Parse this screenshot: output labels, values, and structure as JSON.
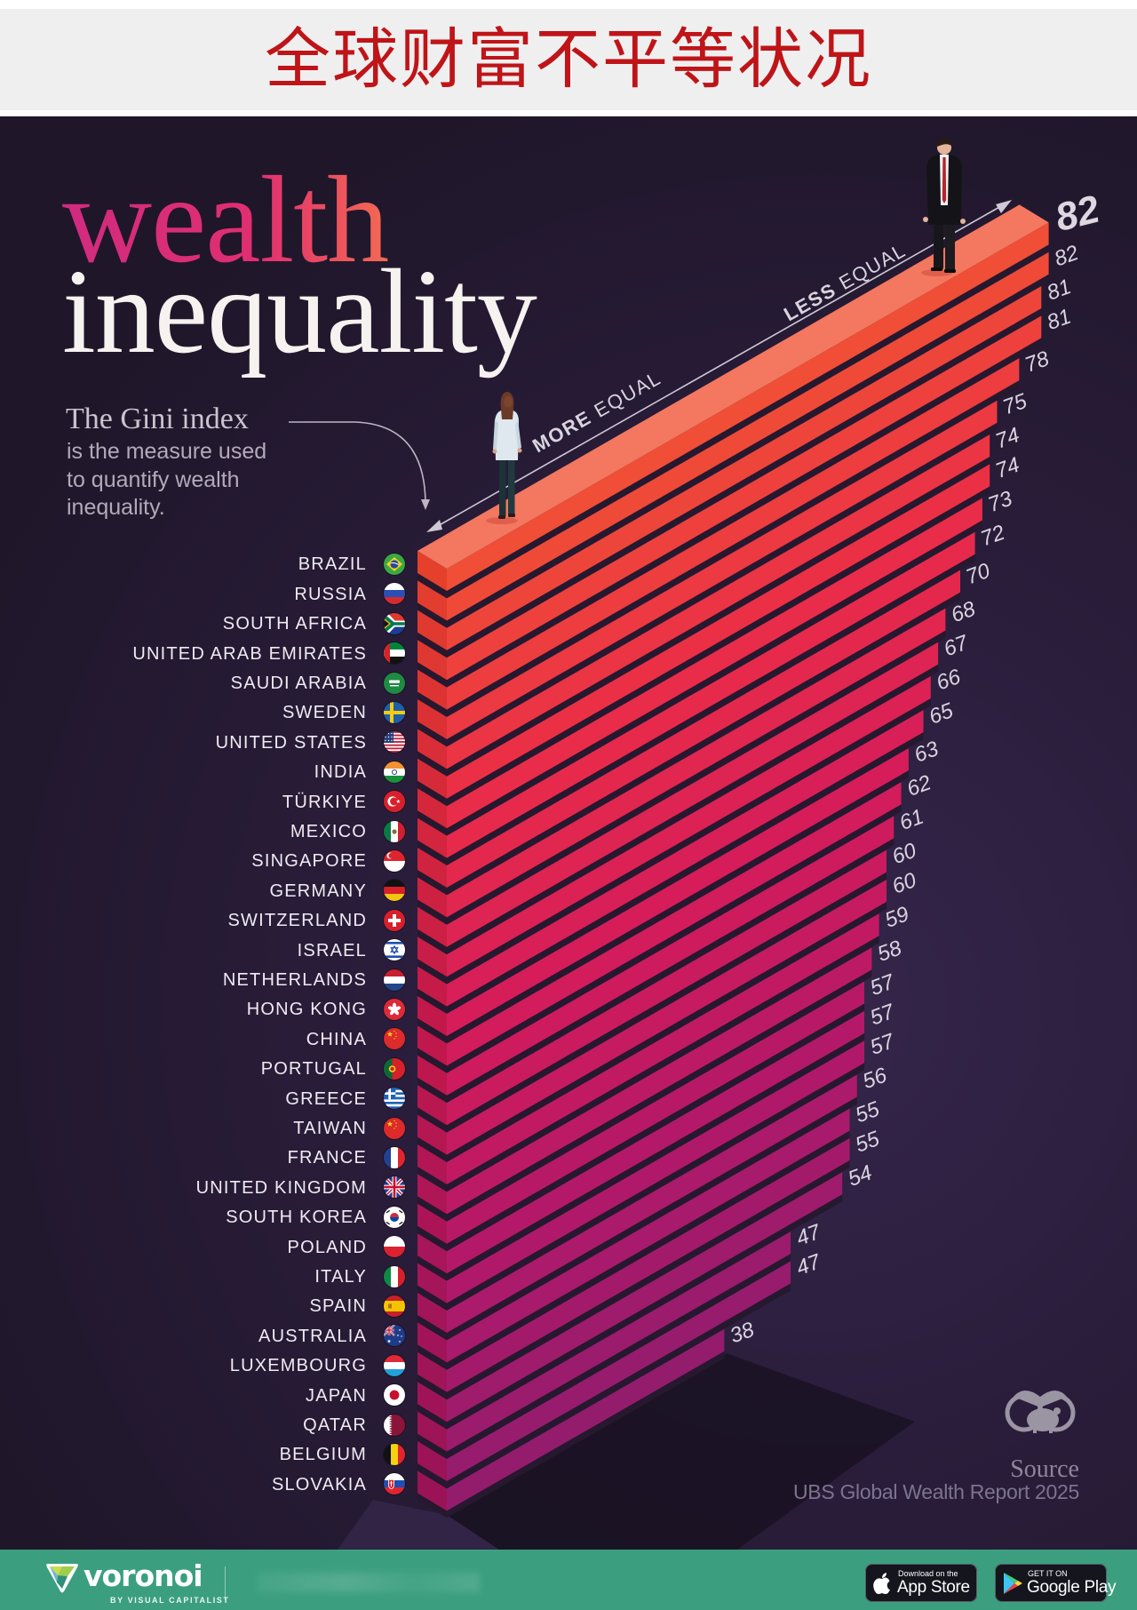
{
  "header": {
    "title_cn": "全球财富不平等状况"
  },
  "headline": {
    "line1": "wealth",
    "line2": "inequality"
  },
  "intro": {
    "heading": "The Gini index",
    "body": [
      "is the measure used",
      "to quantify wealth",
      "inequality."
    ]
  },
  "axis": {
    "more_equal": {
      "strong": "MORE",
      "rest": "EQUAL"
    },
    "less_equal": {
      "strong": "LESS",
      "rest": "EQUAL"
    }
  },
  "source": {
    "label": "Source",
    "text": "UBS Global Wealth Report 2025",
    "icon": "binoculars-piggy-icon"
  },
  "footer": {
    "brand": "voronoi",
    "brand_sub": "BY VISUAL CAPITALIST",
    "app_store": {
      "small": "Download on the",
      "big": "App Store"
    },
    "google_play": {
      "small": "GET IT ON",
      "big": "Google Play"
    }
  },
  "colors": {
    "title_cn": "#bf1418",
    "background": "#241a2e",
    "footer": "#3b9f7f",
    "bar_top_face": "#f4775f",
    "bar_face_stops": [
      "#f04e36",
      "#ea2d48",
      "#d51c5a",
      "#b3196a",
      "#931c6d"
    ],
    "bar_cap_stops": [
      "#e4402c",
      "#d6283a",
      "#c2184b",
      "#a6155a",
      "#9a1356"
    ]
  },
  "chart_data": {
    "type": "bar",
    "orientation": "horizontal",
    "title": "wealth inequality",
    "subtitle": "The Gini index is the measure used to quantify wealth inequality.",
    "xlabel": "",
    "ylabel": "",
    "axis_direction": [
      "MORE EQUAL",
      "LESS EQUAL"
    ],
    "categories": [
      "BRAZIL",
      "RUSSIA",
      "SOUTH AFRICA",
      "UNITED ARAB EMIRATES",
      "SAUDI ARABIA",
      "SWEDEN",
      "UNITED STATES",
      "INDIA",
      "TÜRKIYE",
      "MEXICO",
      "SINGAPORE",
      "GERMANY",
      "SWITZERLAND",
      "ISRAEL",
      "NETHERLANDS",
      "HONG KONG",
      "CHINA",
      "PORTUGAL",
      "GREECE",
      "TAIWAN",
      "FRANCE",
      "UNITED KINGDOM",
      "SOUTH KOREA",
      "POLAND",
      "ITALY",
      "SPAIN",
      "AUSTRALIA",
      "LUXEMBOURG",
      "JAPAN",
      "QATAR",
      "BELGIUM",
      "SLOVAKIA"
    ],
    "values": [
      82,
      82,
      81,
      81,
      78,
      75,
      74,
      74,
      73,
      72,
      70,
      68,
      67,
      66,
      65,
      63,
      62,
      61,
      60,
      60,
      59,
      58,
      57,
      57,
      57,
      56,
      55,
      55,
      54,
      47,
      47,
      38
    ],
    "flag_icons": [
      "brazil-flag-icon",
      "russia-flag-icon",
      "south-africa-flag-icon",
      "united-arab-emirates-flag-icon",
      "saudi-arabia-flag-icon",
      "sweden-flag-icon",
      "united-states-flag-icon",
      "india-flag-icon",
      "turkiye-flag-icon",
      "mexico-flag-icon",
      "singapore-flag-icon",
      "germany-flag-icon",
      "switzerland-flag-icon",
      "israel-flag-icon",
      "netherlands-flag-icon",
      "hong-kong-flag-icon",
      "china-flag-icon",
      "portugal-flag-icon",
      "greece-flag-icon",
      "taiwan-flag-icon",
      "france-flag-icon",
      "united-kingdom-flag-icon",
      "south-korea-flag-icon",
      "poland-flag-icon",
      "italy-flag-icon",
      "spain-flag-icon",
      "australia-flag-icon",
      "luxembourg-flag-icon",
      "japan-flag-icon",
      "qatar-flag-icon",
      "belgium-flag-icon",
      "slovakia-flag-icon"
    ],
    "value_labels": true,
    "source": "UBS Global Wealth Report 2025"
  }
}
